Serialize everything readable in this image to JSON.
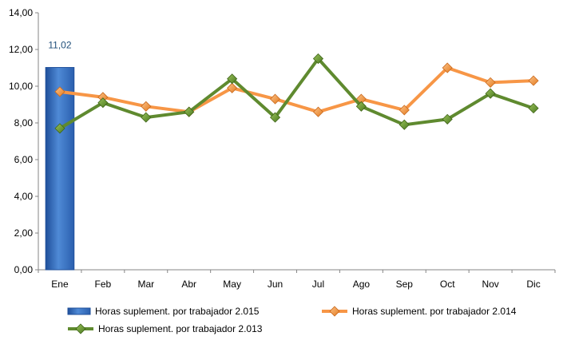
{
  "chart_data": {
    "type": "bar",
    "categories": [
      "Ene",
      "Feb",
      "Mar",
      "Abr",
      "May",
      "Jun",
      "Jul",
      "Ago",
      "Sep",
      "Oct",
      "Nov",
      "Dic"
    ],
    "ylim": [
      0,
      14
    ],
    "y_ticks": [
      "0,00",
      "2,00",
      "4,00",
      "6,00",
      "8,00",
      "10,00",
      "12,00",
      "14,00"
    ],
    "grid": false,
    "legend_position": "bottom",
    "series": [
      {
        "name": "Horas suplement. por trabajador 2.015",
        "type": "bar",
        "color": "#3a76c4",
        "values": [
          11.02,
          null,
          null,
          null,
          null,
          null,
          null,
          null,
          null,
          null,
          null,
          null
        ],
        "data_labels": [
          "11,02",
          "",
          "",
          "",
          "",
          "",
          "",
          "",
          "",
          "",
          "",
          ""
        ]
      },
      {
        "name": "Horas suplement. por trabajador 2.014",
        "type": "line",
        "color": "#f79646",
        "values": [
          9.7,
          9.4,
          8.9,
          8.6,
          9.9,
          9.3,
          8.6,
          9.3,
          8.7,
          11.0,
          10.2,
          10.3
        ]
      },
      {
        "name": "Horas suplement. por trabajador 2.013",
        "type": "line",
        "color": "#5f8a2f",
        "values": [
          7.7,
          9.1,
          8.3,
          8.6,
          10.4,
          8.3,
          11.5,
          8.9,
          7.9,
          8.2,
          9.6,
          8.8
        ]
      }
    ]
  }
}
